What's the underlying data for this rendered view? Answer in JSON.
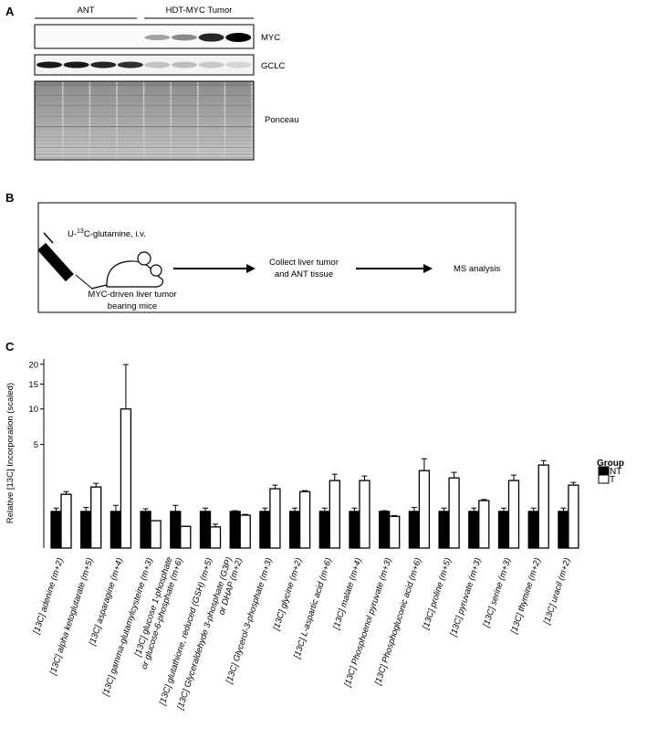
{
  "panel_a": {
    "label": "A",
    "groups": [
      "ANT",
      "HDT-MYC Tumor"
    ],
    "blots": [
      "MYC",
      "GCLC",
      "Ponceau"
    ]
  },
  "panel_b": {
    "label": "B",
    "tracer": [
      "U-",
      "13",
      "C-glutamine, i.v."
    ],
    "model": [
      "MYC-driven liver tumor",
      "bearing mice"
    ],
    "step": [
      "Collect liver tumor",
      "and ANT tissue"
    ],
    "output": "MS analysis"
  },
  "chart_data": {
    "type": "bar",
    "panel_label": "C",
    "y_label": "Relative [13C] Incorporation (scaled)",
    "y_scale": "cbrt",
    "ylim": [
      0.07,
      21.5
    ],
    "yticks": [
      5,
      10,
      15,
      20
    ],
    "categories": [
      "[13C] adenine (m+2)",
      "[13C] alpha ketoglutarate (m+5)",
      "[13C] asparagine (m+4)",
      "[13C] gamma-glutamylcysteine (m+3)",
      "[13C] glucose 1-phosphate\nor glucose-6-phosphate (m+6)",
      "[13C] glutathione, reduced (GSH) (m+5)",
      "[13C] Glyceraldehyde 3-phosphate (G3P)\nor DHAP (m+2)",
      "[13C] Glycerol-3-phosphate (m+3)",
      "[13C] glycine (m+2)",
      "[13C] L-aspartic acid (m+6)",
      "[13C] malate (m+4)",
      "[13C] Phosphoenol pyruvate (m+3)",
      "[13C] Phosphogluconic acid (m+6)",
      "[13C] proline (m+5)",
      "[13C] pyruvate (m+3)",
      "[13C] serine (m+3)",
      "[13C] thymine (m+2)",
      "[13C] uracil (m+2)"
    ],
    "legend_title": "Group",
    "series": [
      {
        "name": "NT",
        "color": "#000000",
        "values": [
          0.66,
          0.66,
          0.66,
          0.66,
          0.66,
          0.66,
          0.66,
          0.66,
          0.66,
          0.66,
          0.66,
          0.66,
          0.66,
          0.66,
          0.66,
          0.66,
          0.66,
          0.66
        ],
        "errors": [
          0.1,
          0.12,
          0.19,
          0.08,
          0.19,
          0.1,
          0.02,
          0.1,
          0.1,
          0.1,
          0.1,
          0.02,
          0.12,
          0.1,
          0.1,
          0.1,
          0.1,
          0.1
        ]
      },
      {
        "name": "T",
        "color": "#ffffff",
        "values": [
          1.28,
          1.63,
          10,
          0.43,
          0.32,
          0.31,
          0.56,
          1.54,
          1.4,
          1.99,
          1.99,
          0.53,
          2.64,
          2.15,
          1.02,
          1.99,
          3.06,
          1.73
        ],
        "errors": [
          0.12,
          0.2,
          9.9,
          0,
          0,
          0.05,
          0.02,
          0.19,
          0.05,
          0.4,
          0.28,
          0.02,
          0.95,
          0.37,
          0.04,
          0.34,
          0.37,
          0.15
        ]
      }
    ]
  }
}
